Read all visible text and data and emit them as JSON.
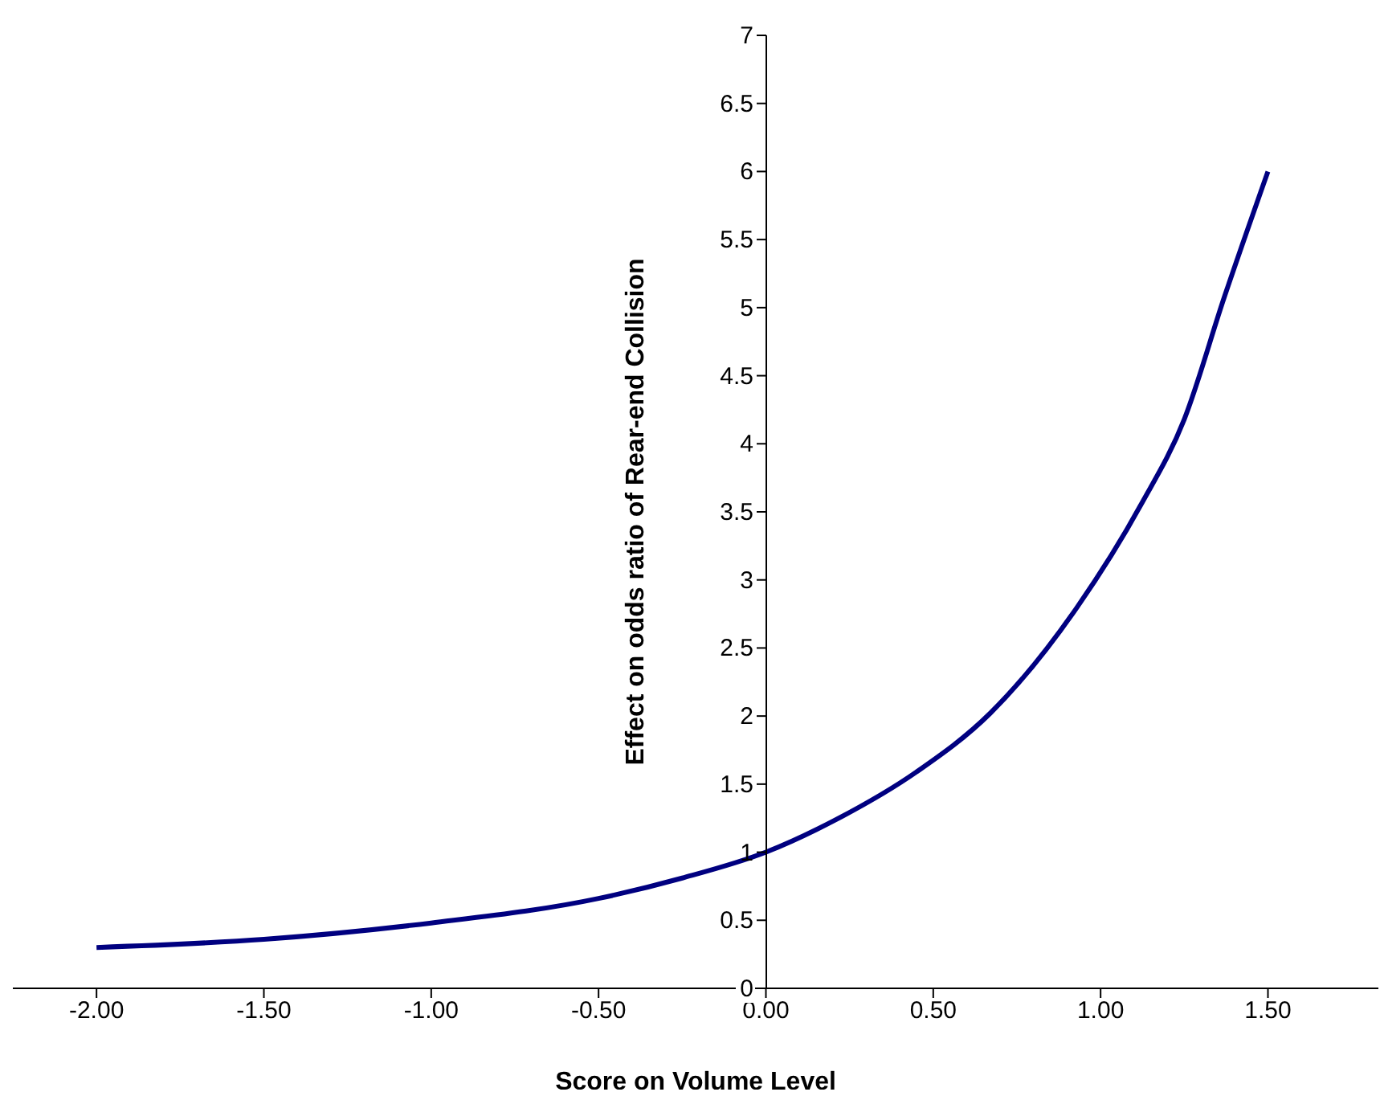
{
  "chart_data": {
    "type": "line",
    "xlabel": "Score on Volume Level",
    "ylabel": "Effect on odds ratio of Rear-end Collision",
    "x": [
      -2,
      -1.5,
      -1,
      -0.5,
      -0.25,
      0,
      0.21,
      0.45,
      0.67,
      0.93,
      1.12,
      1.25,
      1.37,
      1.5
    ],
    "series": [
      {
        "color": "#000080",
        "values": [
          0.3,
          0.36,
          0.48,
          0.66,
          0.81,
          1.0,
          1.24,
          1.59,
          2.02,
          2.8,
          3.55,
          4.18,
          5.08,
          6.0
        ]
      }
    ],
    "xlim": [
      -2.25,
      1.83
    ],
    "xticks": [
      {
        "value": -2,
        "label": "-2.00"
      },
      {
        "value": -1.5,
        "label": "-1.50"
      },
      {
        "value": -1,
        "label": "-1.00"
      },
      {
        "value": -0.5,
        "label": "-0.50"
      },
      {
        "value": 0,
        "label": "0.00"
      },
      {
        "value": 0.5,
        "label": "0.50"
      },
      {
        "value": 1,
        "label": "1.00"
      },
      {
        "value": 1.5,
        "label": "1.50"
      }
    ],
    "ylim": [
      0,
      7
    ],
    "yticks": [
      0,
      0.5,
      1,
      1.5,
      2,
      2.5,
      3,
      3.5,
      4,
      4.5,
      5,
      5.5,
      6,
      6.5,
      7
    ],
    "marker": "none",
    "line_style": "solid",
    "grid": false
  }
}
